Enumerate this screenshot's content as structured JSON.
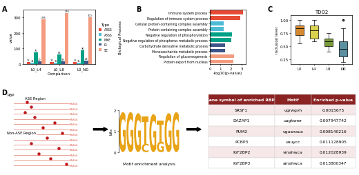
{
  "chart_data": [
    {
      "panel": "A",
      "type": "bar",
      "xlabel": "Comparison",
      "ylabel": "value",
      "categories": [
        "L0_L4",
        "L0_L8",
        "L0_N0"
      ],
      "series": [
        {
          "name": "A3SS",
          "color": "#e64b35",
          "values": [
            16,
            14,
            15
          ]
        },
        {
          "name": "A5SS",
          "color": "#4dbbd5",
          "values": [
            11,
            10,
            12
          ]
        },
        {
          "name": "MXE",
          "color": "#00a087",
          "values": [
            75,
            63,
            90
          ]
        },
        {
          "name": "RI",
          "color": "#3c5488",
          "values": [
            20,
            19,
            23
          ]
        },
        {
          "name": "SE",
          "color": "#f39b7f",
          "values": [
            286,
            326,
            300
          ]
        }
      ],
      "ylim": [
        0,
        345
      ],
      "yticks": [
        0,
        100,
        200,
        300
      ],
      "legend": "right",
      "legend_title": "Type",
      "data_labels": true
    },
    {
      "panel": "B",
      "type": "bar",
      "orientation": "horizontal",
      "xlabel": "-log10(p-value)",
      "ylabel": "Biological Process",
      "categories": [
        "Immune system process",
        "Regulation of immune system process",
        "Cellular protein-containing complex assembly",
        "Protein-containing complex assembly",
        "Negative regulation of phosphorylation",
        "Negative regulation of phosphorus metabolic process",
        "Carbohydrate derivative metabolic process",
        "Monosaccharide metabolic process",
        "Regulation of gluconeogenesis",
        "Protein export from nucleus"
      ],
      "values": [
        3.1,
        2.85,
        1.3,
        1.3,
        2.05,
        2.0,
        1.4,
        1.45,
        2.3,
        2.2
      ],
      "colors": [
        "#e64b35",
        "#e64b35",
        "#4dbbd5",
        "#4dbbd5",
        "#00a087",
        "#00a087",
        "#3c5488",
        "#3c5488",
        "#f39b7f",
        "#f39b7f"
      ],
      "xlim": [
        0,
        3.4
      ],
      "xticks": [
        0,
        1,
        2,
        3
      ]
    },
    {
      "panel": "C",
      "type": "box",
      "title": "TDO2",
      "ylabel": "Inclusion level",
      "categories": [
        "L0",
        "L4",
        "L8",
        "N0"
      ],
      "boxes": [
        {
          "whislo": 0.55,
          "q1": 0.72,
          "med": 0.85,
          "q3": 0.9,
          "whishi": 1.0,
          "fliers": []
        },
        {
          "whislo": 0.6,
          "q1": 0.65,
          "med": 0.8,
          "q3": 0.9,
          "whishi": 1.0,
          "fliers": []
        },
        {
          "whislo": 0.4,
          "q1": 0.5,
          "med": 0.6,
          "q3": 0.65,
          "whishi": 0.75,
          "fliers": []
        },
        {
          "whislo": 0.2,
          "q1": 0.3,
          "med": 0.45,
          "q3": 0.6,
          "whishi": 0.85,
          "fliers": [
            1.0
          ]
        }
      ],
      "colors": [
        "#d4892e",
        "#d9d24e",
        "#7a9a3a",
        "#5a8fa0"
      ],
      "ylim": [
        0.15,
        1.1
      ],
      "yticks": [
        {
          "value": 0.25,
          "label": "0.25"
        },
        {
          "value": 0.5,
          "label": "0.50"
        },
        {
          "value": 0.75,
          "label": "0.75"
        },
        {
          "value": 1.0,
          "label": "1.00"
        }
      ]
    }
  ],
  "diagram": {
    "panel": "D",
    "schematic": {
      "rbp_label": "RBP",
      "ase_label": "ASE Region",
      "non_ase_label": "Non-ASE Region",
      "poly_a": "AAAAA"
    },
    "logo": {
      "ylabel": "bits",
      "ylim": [
        0,
        2
      ],
      "yticks": [
        0,
        1,
        2
      ],
      "color": "#e8a317",
      "caption": "Motif enrichment analysis",
      "columns": [
        [
          {
            "letter": "G",
            "bits": 1.9
          }
        ],
        [
          {
            "letter": "G",
            "bits": 1.9
          }
        ],
        [
          {
            "letter": "G",
            "bits": 1.85
          }
        ],
        [
          {
            "letter": "C",
            "bits": 0.4
          },
          {
            "letter": "T",
            "bits": 1.3
          }
        ],
        [
          {
            "letter": "G",
            "bits": 1.8
          }
        ],
        [
          {
            "letter": "G",
            "bits": 0.5
          },
          {
            "letter": "T",
            "bits": 1.0
          }
        ],
        [
          {
            "letter": "G",
            "bits": 1.85
          }
        ],
        [
          {
            "letter": "G",
            "bits": 1.9
          }
        ]
      ]
    },
    "table": {
      "header": [
        "Gene symbol of enriched RBPs",
        "Motif",
        "Enriched p-value"
      ],
      "rows": [
        [
          "SRSF1",
          "ugrwgvh",
          "0.0015675"
        ],
        [
          "DAZAP1",
          "uagkwwr",
          "0.007947742"
        ],
        [
          "PUM2",
          "uguanaua",
          "0.008140216"
        ],
        [
          "PCBP3",
          "uuuycc",
          "0.011128905"
        ],
        [
          "IGF2BP2",
          "vmahwca",
          "0.012028939"
        ],
        [
          "IGF2BP3",
          "amahwca",
          "0.013800347"
        ]
      ]
    }
  }
}
